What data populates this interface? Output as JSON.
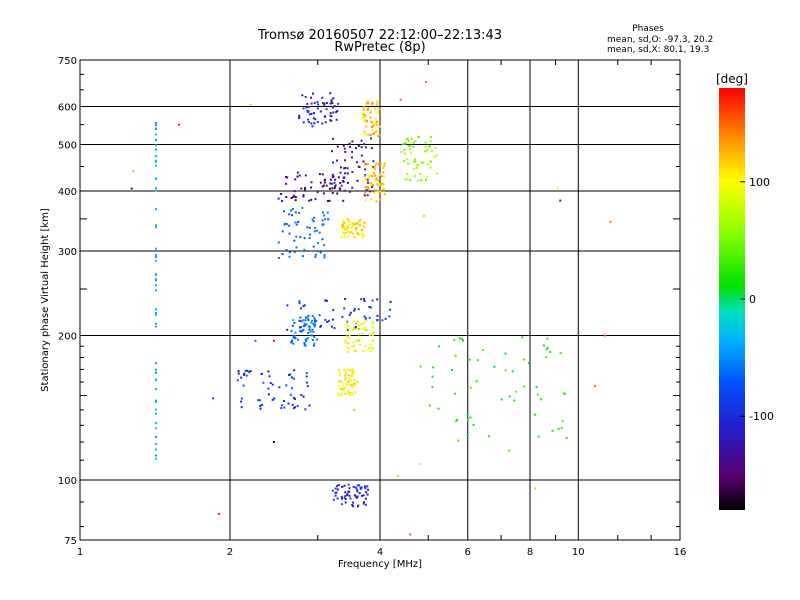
{
  "header": {
    "title_line1": "Tromsø 20160507 22:12:00–22:13:43",
    "title_line2": "RwPretec (8p)"
  },
  "stats": {
    "heading": "Phases",
    "line_o": "mean, sd,O: -97.3, 20.2",
    "line_x": "mean, sd,X:  80.1, 19.3"
  },
  "colorbar": {
    "unit_label": "[deg]",
    "tick_labels": [
      "100",
      "0",
      "-100"
    ],
    "tick_values": [
      100,
      0,
      -100
    ],
    "range": [
      -180,
      180
    ]
  },
  "chart_data": {
    "type": "scatter",
    "title": "Tromsø 20160507 22:12:00–22:13:43",
    "subtitle": "RwPretec (8p)",
    "xlabel": "Frequency [MHz]",
    "ylabel": "Stationary phase Virtual Height [km]",
    "x_scale": "log",
    "y_scale": "log",
    "xlim": [
      1,
      16
    ],
    "ylim": [
      75,
      750
    ],
    "x_ticks": [
      1,
      2,
      4,
      6,
      8,
      10,
      16
    ],
    "x_tick_labels": [
      "1",
      "2",
      "4",
      "6",
      "8",
      "10",
      "16"
    ],
    "y_ticks": [
      75,
      100,
      200,
      300,
      400,
      500,
      600,
      750
    ],
    "y_tick_labels": [
      "75",
      "100",
      "200",
      "300",
      "400",
      "500",
      "600",
      "750"
    ],
    "grid": true,
    "color_encodes": "phase [deg]",
    "clusters": [
      {
        "x": [
          2.75,
          3.3
        ],
        "y": [
          545,
          640
        ],
        "phase": -115
      },
      {
        "x": [
          2.5,
          3.4
        ],
        "y": [
          380,
          440
        ],
        "phase": -145
      },
      {
        "x": [
          3.2,
          3.9
        ],
        "y": [
          390,
          520
        ],
        "phase": -130
      },
      {
        "x": [
          2.5,
          3.15
        ],
        "y": [
          290,
          370
        ],
        "phase": -80
      },
      {
        "x": [
          3.35,
          3.75
        ],
        "y": [
          320,
          350
        ],
        "phase": 110
      },
      {
        "x": [
          3.7,
          4.1
        ],
        "y": [
          380,
          460
        ],
        "phase": 120
      },
      {
        "x": [
          3.7,
          4.0
        ],
        "y": [
          520,
          620
        ],
        "phase": 120
      },
      {
        "x": [
          4.4,
          5.2
        ],
        "y": [
          420,
          520
        ],
        "phase": 60
      },
      {
        "x": [
          2.6,
          4.2
        ],
        "y": [
          205,
          240
        ],
        "phase": -100
      },
      {
        "x": [
          3.4,
          3.9
        ],
        "y": [
          185,
          215
        ],
        "phase": 95
      },
      {
        "x": [
          2.65,
          3.0
        ],
        "y": [
          190,
          220
        ],
        "phase": -70
      },
      {
        "x": [
          3.3,
          3.6
        ],
        "y": [
          150,
          170
        ],
        "phase": 100
      },
      {
        "x": [
          2.05,
          2.9
        ],
        "y": [
          140,
          170
        ],
        "phase": -105
      },
      {
        "x": [
          4.8,
          9.5
        ],
        "y": [
          115,
          200
        ],
        "phase": 20
      },
      {
        "x": [
          3.2,
          3.8
        ],
        "y": [
          88,
          98
        ],
        "phase": -110
      },
      {
        "x": [
          1.42,
          1.42
        ],
        "y": [
          110,
          580
        ],
        "phase": -40
      }
    ],
    "sparse_points": [
      {
        "x": 1.27,
        "y": 405,
        "phase": -150
      },
      {
        "x": 1.28,
        "y": 440,
        "phase": 40
      },
      {
        "x": 1.58,
        "y": 550,
        "phase": 170
      },
      {
        "x": 1.85,
        "y": 148,
        "phase": -100
      },
      {
        "x": 1.9,
        "y": 85,
        "phase": 170
      },
      {
        "x": 2.2,
        "y": 605,
        "phase": 60
      },
      {
        "x": 2.25,
        "y": 195,
        "phase": -80
      },
      {
        "x": 2.45,
        "y": 195,
        "phase": 180
      },
      {
        "x": 2.45,
        "y": 120,
        "phase": -170
      },
      {
        "x": 3.55,
        "y": 140,
        "phase": 50
      },
      {
        "x": 4.2,
        "y": 235,
        "phase": -150
      },
      {
        "x": 4.4,
        "y": 620,
        "phase": 150
      },
      {
        "x": 4.95,
        "y": 675,
        "phase": 150
      },
      {
        "x": 4.9,
        "y": 355,
        "phase": 60
      },
      {
        "x": 4.35,
        "y": 102,
        "phase": 60
      },
      {
        "x": 4.6,
        "y": 77,
        "phase": 150
      },
      {
        "x": 4.8,
        "y": 108,
        "phase": 80
      },
      {
        "x": 8.2,
        "y": 96,
        "phase": 120
      },
      {
        "x": 9.1,
        "y": 405,
        "phase": 90
      },
      {
        "x": 9.2,
        "y": 382,
        "phase": -140
      },
      {
        "x": 11.3,
        "y": 200,
        "phase": 160
      },
      {
        "x": 11.6,
        "y": 345,
        "phase": 140
      },
      {
        "x": 10.8,
        "y": 157,
        "phase": 150
      }
    ]
  },
  "colors": {
    "background": "#ffffff",
    "axes": "#000000",
    "grid": "#000000"
  }
}
